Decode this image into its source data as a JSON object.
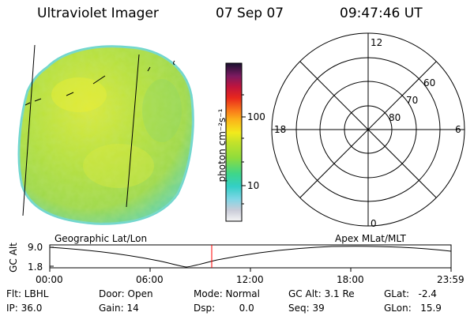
{
  "header": {
    "instrument": "Ultraviolet Imager",
    "date": "07 Sep 07",
    "time": "09:47:46 UT"
  },
  "colorbar": {
    "unit_label": "photon cm⁻²s⁻¹",
    "ticks": [
      "100",
      "10"
    ]
  },
  "polar_plot": {
    "mlt_labels": {
      "top": "12",
      "right": "6",
      "bottom": "0",
      "left": "18"
    },
    "lat_labels": [
      "60",
      "70",
      "80"
    ]
  },
  "map_labels": {
    "left": "Geographic Lat/Lon",
    "right": "Apex  MLat/MLT"
  },
  "altitude_panel": {
    "axis_title": "GC Alt",
    "y_ticks": [
      "9.0",
      "1.8"
    ],
    "x_ticks": [
      "00:00",
      "06:00",
      "12:00",
      "18:00",
      "23:59"
    ],
    "marker_color": "#ff0000"
  },
  "info": {
    "row1": [
      "Flt: LBHL",
      "Door: Open",
      "Mode: Normal",
      "GC Alt: 3.1 Re",
      "GLat:   -2.4"
    ],
    "row2": [
      "IP: 36.0",
      "Gain: 14",
      "Dsp:        0.0",
      "Seq: 39",
      "GLon:   15.9"
    ]
  },
  "colors": {
    "disk_base": "#b9e23a",
    "disk_edge": "#4fd8c8",
    "disk_bright": "#e6ee30"
  }
}
